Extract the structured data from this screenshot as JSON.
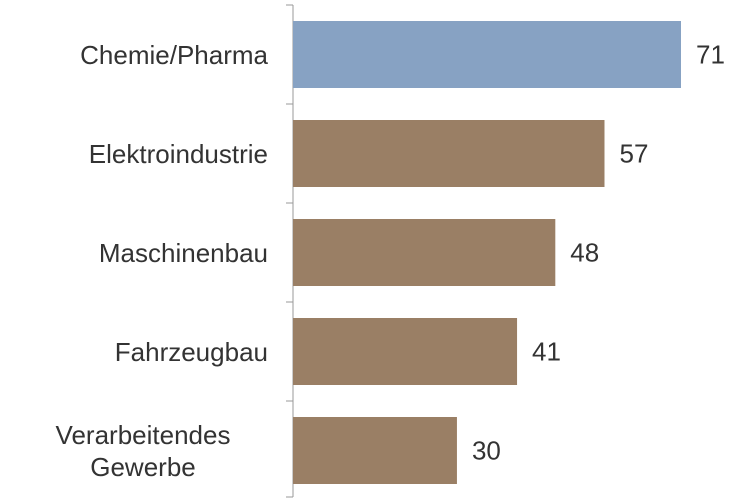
{
  "chart_data": {
    "type": "bar",
    "orientation": "horizontal",
    "categories": [
      "Chemie/Pharma",
      "Elektroindustrie",
      "Maschinenbau",
      "Fahrzeugbau",
      "Verarbeitendes Gewerbe"
    ],
    "values": [
      71,
      57,
      48,
      41,
      30
    ],
    "colors": [
      "#87a2c3",
      "#9a7f65",
      "#9a7f65",
      "#9a7f65",
      "#9a7f65"
    ]
  }
}
